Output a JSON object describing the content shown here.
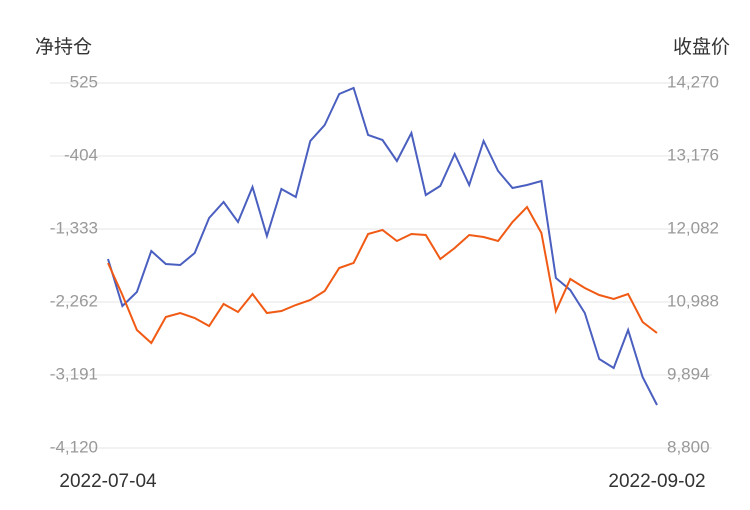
{
  "chart_data": {
    "type": "line",
    "y_label": "净持仓",
    "y2_label": "收盘价",
    "categories": [
      "2022-07-04",
      null,
      null,
      null,
      null,
      null,
      null,
      null,
      null,
      null,
      null,
      null,
      null,
      null,
      null,
      null,
      null,
      null,
      null,
      null,
      null,
      null,
      null,
      null,
      null,
      null,
      null,
      null,
      null,
      null,
      null,
      null,
      null,
      null,
      null,
      null,
      null,
      null,
      "2022-09-02"
    ],
    "series": [
      {
        "name": "净持仓",
        "color": "#4a5fbf",
        "axis": "y",
        "values": [
          -1715,
          -2313,
          -2135,
          -1613,
          -1778,
          -1791,
          -1638,
          -1193,
          -989,
          -1244,
          -798,
          -1422,
          -824,
          -926,
          -213,
          -9,
          385,
          461,
          -137,
          -200,
          -468,
          -111,
          -900,
          -785,
          -378,
          -773,
          -213,
          -595,
          -811,
          -773,
          -722,
          -1957,
          -2110,
          -2402,
          -2987,
          -3102,
          -2618,
          -3217,
          -3573
        ]
      },
      {
        "name": "收盘价",
        "color": "#f05a14",
        "axis": "y2",
        "values": [
          11573,
          11093,
          10568,
          10374,
          10763,
          10823,
          10748,
          10628,
          10958,
          10838,
          11108,
          10823,
          10853,
          10943,
          11018,
          11153,
          11498,
          11573,
          12007,
          12067,
          11902,
          12007,
          11992,
          11632,
          11797,
          11992,
          11962,
          11902,
          12187,
          12412,
          12022,
          10853,
          11333,
          11198,
          11093,
          11033,
          11108,
          10688,
          10523
        ]
      }
    ],
    "ylim": [
      -4120,
      525
    ],
    "yticks": [
      525,
      -404,
      {
        "value": -1333,
        "label": "-1,333"
      },
      {
        "value": -2262,
        "label": "-2,262"
      },
      {
        "value": -3191,
        "label": "-3,191"
      },
      {
        "value": -4120,
        "label": "-4,120"
      }
    ],
    "y2lim": [
      8800,
      14270
    ],
    "y2ticks": [
      {
        "value": 14270,
        "label": "14,270"
      },
      {
        "value": 13176,
        "label": "13,176"
      },
      {
        "value": 12082,
        "label": "12,082"
      },
      {
        "value": 10988,
        "label": "10,988"
      },
      {
        "value": 9894,
        "label": "9,894"
      },
      {
        "value": 8800,
        "label": "8,800"
      }
    ],
    "grid": true
  }
}
